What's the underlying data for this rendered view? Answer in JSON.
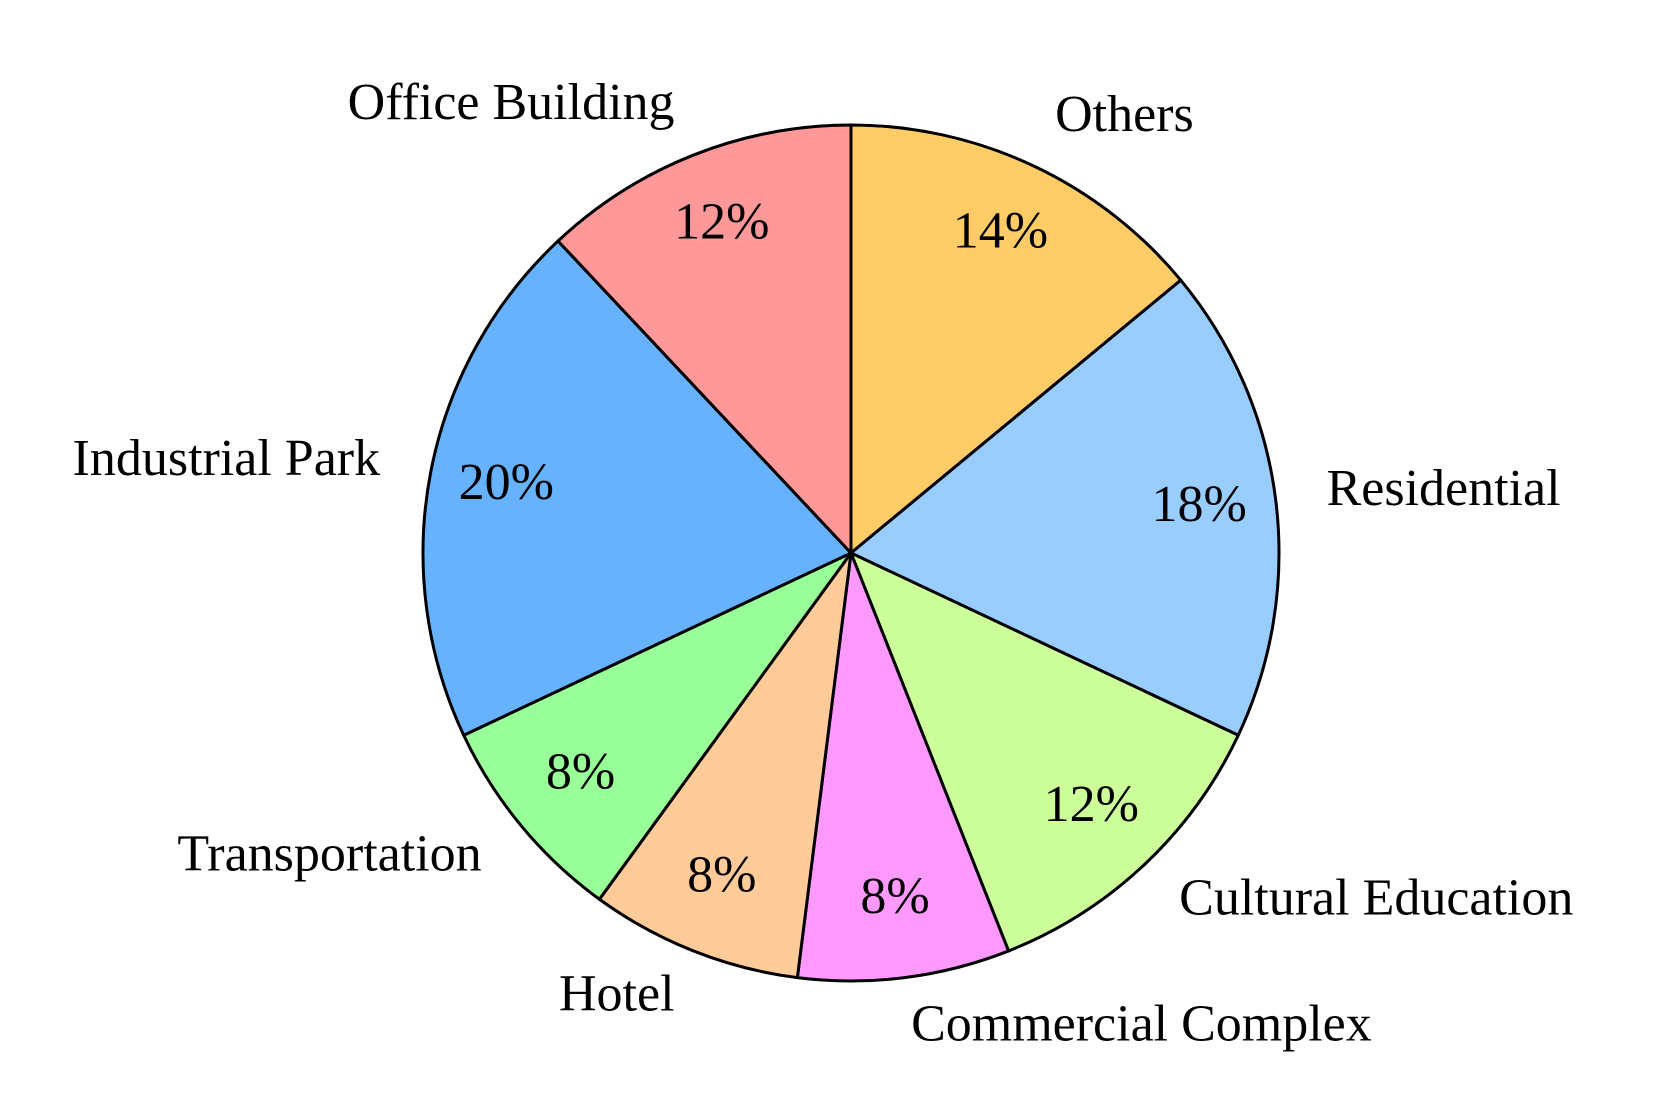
{
  "chart_data": {
    "type": "pie",
    "categories": [
      "Others",
      "Residential",
      "Cultural Education",
      "Commercial Complex",
      "Hotel",
      "Transportation",
      "Industrial Park",
      "Office Building"
    ],
    "values": [
      14,
      18,
      12,
      8,
      8,
      8,
      20,
      12
    ],
    "value_labels": [
      "14%",
      "18%",
      "12%",
      "8%",
      "8%",
      "8%",
      "20%",
      "12%"
    ],
    "colors": [
      "#ffcc66",
      "#99ccff",
      "#ccff99",
      "#ff99ff",
      "#ffcc99",
      "#99ff99",
      "#66b2ff",
      "#ff9999"
    ],
    "start_angle": 90,
    "direction": "clockwise"
  }
}
